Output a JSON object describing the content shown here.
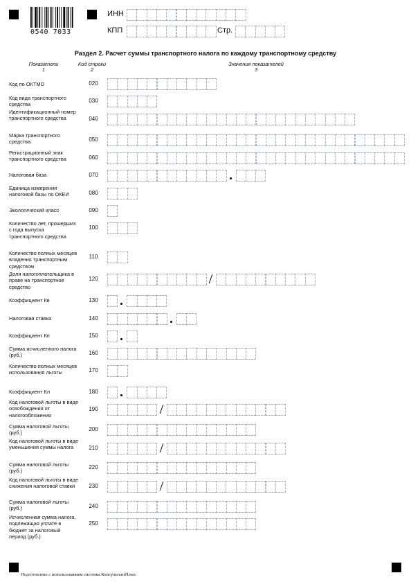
{
  "barcode_number": "0540 7033",
  "header": {
    "inn_label": "ИНН",
    "kpp_label": "КПП",
    "page_label": "Стр."
  },
  "section_title": "Раздел 2. Расчет суммы транспортного налога по каждому транспортному средству",
  "columns": [
    {
      "label": "Показатели",
      "num": "1"
    },
    {
      "label": "Код строки",
      "num": "2"
    },
    {
      "label": "Значения показателей",
      "num": "3"
    }
  ],
  "rows": [
    {
      "label": "Код по ОКТМО",
      "code": "020"
    },
    {
      "label": "Код вида транспортного средства",
      "code": "030"
    },
    {
      "label": "Идентификационный номер транспортного средства",
      "code": "040"
    },
    {
      "label": "Марка транспортного средства",
      "code": "050"
    },
    {
      "label": "Регистрационный знак транспортного средства",
      "code": "060"
    },
    {
      "label": "Налоговая база",
      "code": "070"
    },
    {
      "label": "Единица измерения налоговой базы по ОКЕИ",
      "code": "080"
    },
    {
      "label": "Экологический класс",
      "code": "090"
    },
    {
      "label": "Количество лет, прошедших с года выпуска транспортного средства",
      "code": "100"
    },
    {
      "label": "Количество полных месяцев владения транспортным средством",
      "code": "110"
    },
    {
      "label": "Доля налогоплательщика в праве на транспортное средство",
      "code": "120"
    },
    {
      "label": "Коэффициент Кв",
      "code": "130"
    },
    {
      "label": "Налоговая ставка",
      "code": "140"
    },
    {
      "label": "Коэффициент Кп",
      "code": "150"
    },
    {
      "label": "Сумма исчисленного налога (руб.)",
      "code": "160"
    },
    {
      "label": "Количество полных месяцев использования льготы",
      "code": "170"
    },
    {
      "label": "Коэффициент Кл",
      "code": "180"
    },
    {
      "label": "Код налоговой льготы в виде освобождения от налогообложения",
      "code": "190"
    },
    {
      "label": "Сумма налоговой льготы (руб.)",
      "code": "200"
    },
    {
      "label": "Код налоговой льготы в виде уменьшения суммы налога",
      "code": "210"
    },
    {
      "label": "Сумма налоговой льготы (руб.)",
      "code": "220"
    },
    {
      "label": "Код налоговой льготы в виде снижения налоговой ставки",
      "code": "230"
    },
    {
      "label": "Сумма налоговой льготы (руб.)",
      "code": "240"
    },
    {
      "label": "Исчисленная сумма налога, подлежащая уплате в бюджет за налоговый период (руб.)",
      "code": "250"
    }
  ],
  "footer": "Подготовлено с использованием системы КонсультантПлюс"
}
